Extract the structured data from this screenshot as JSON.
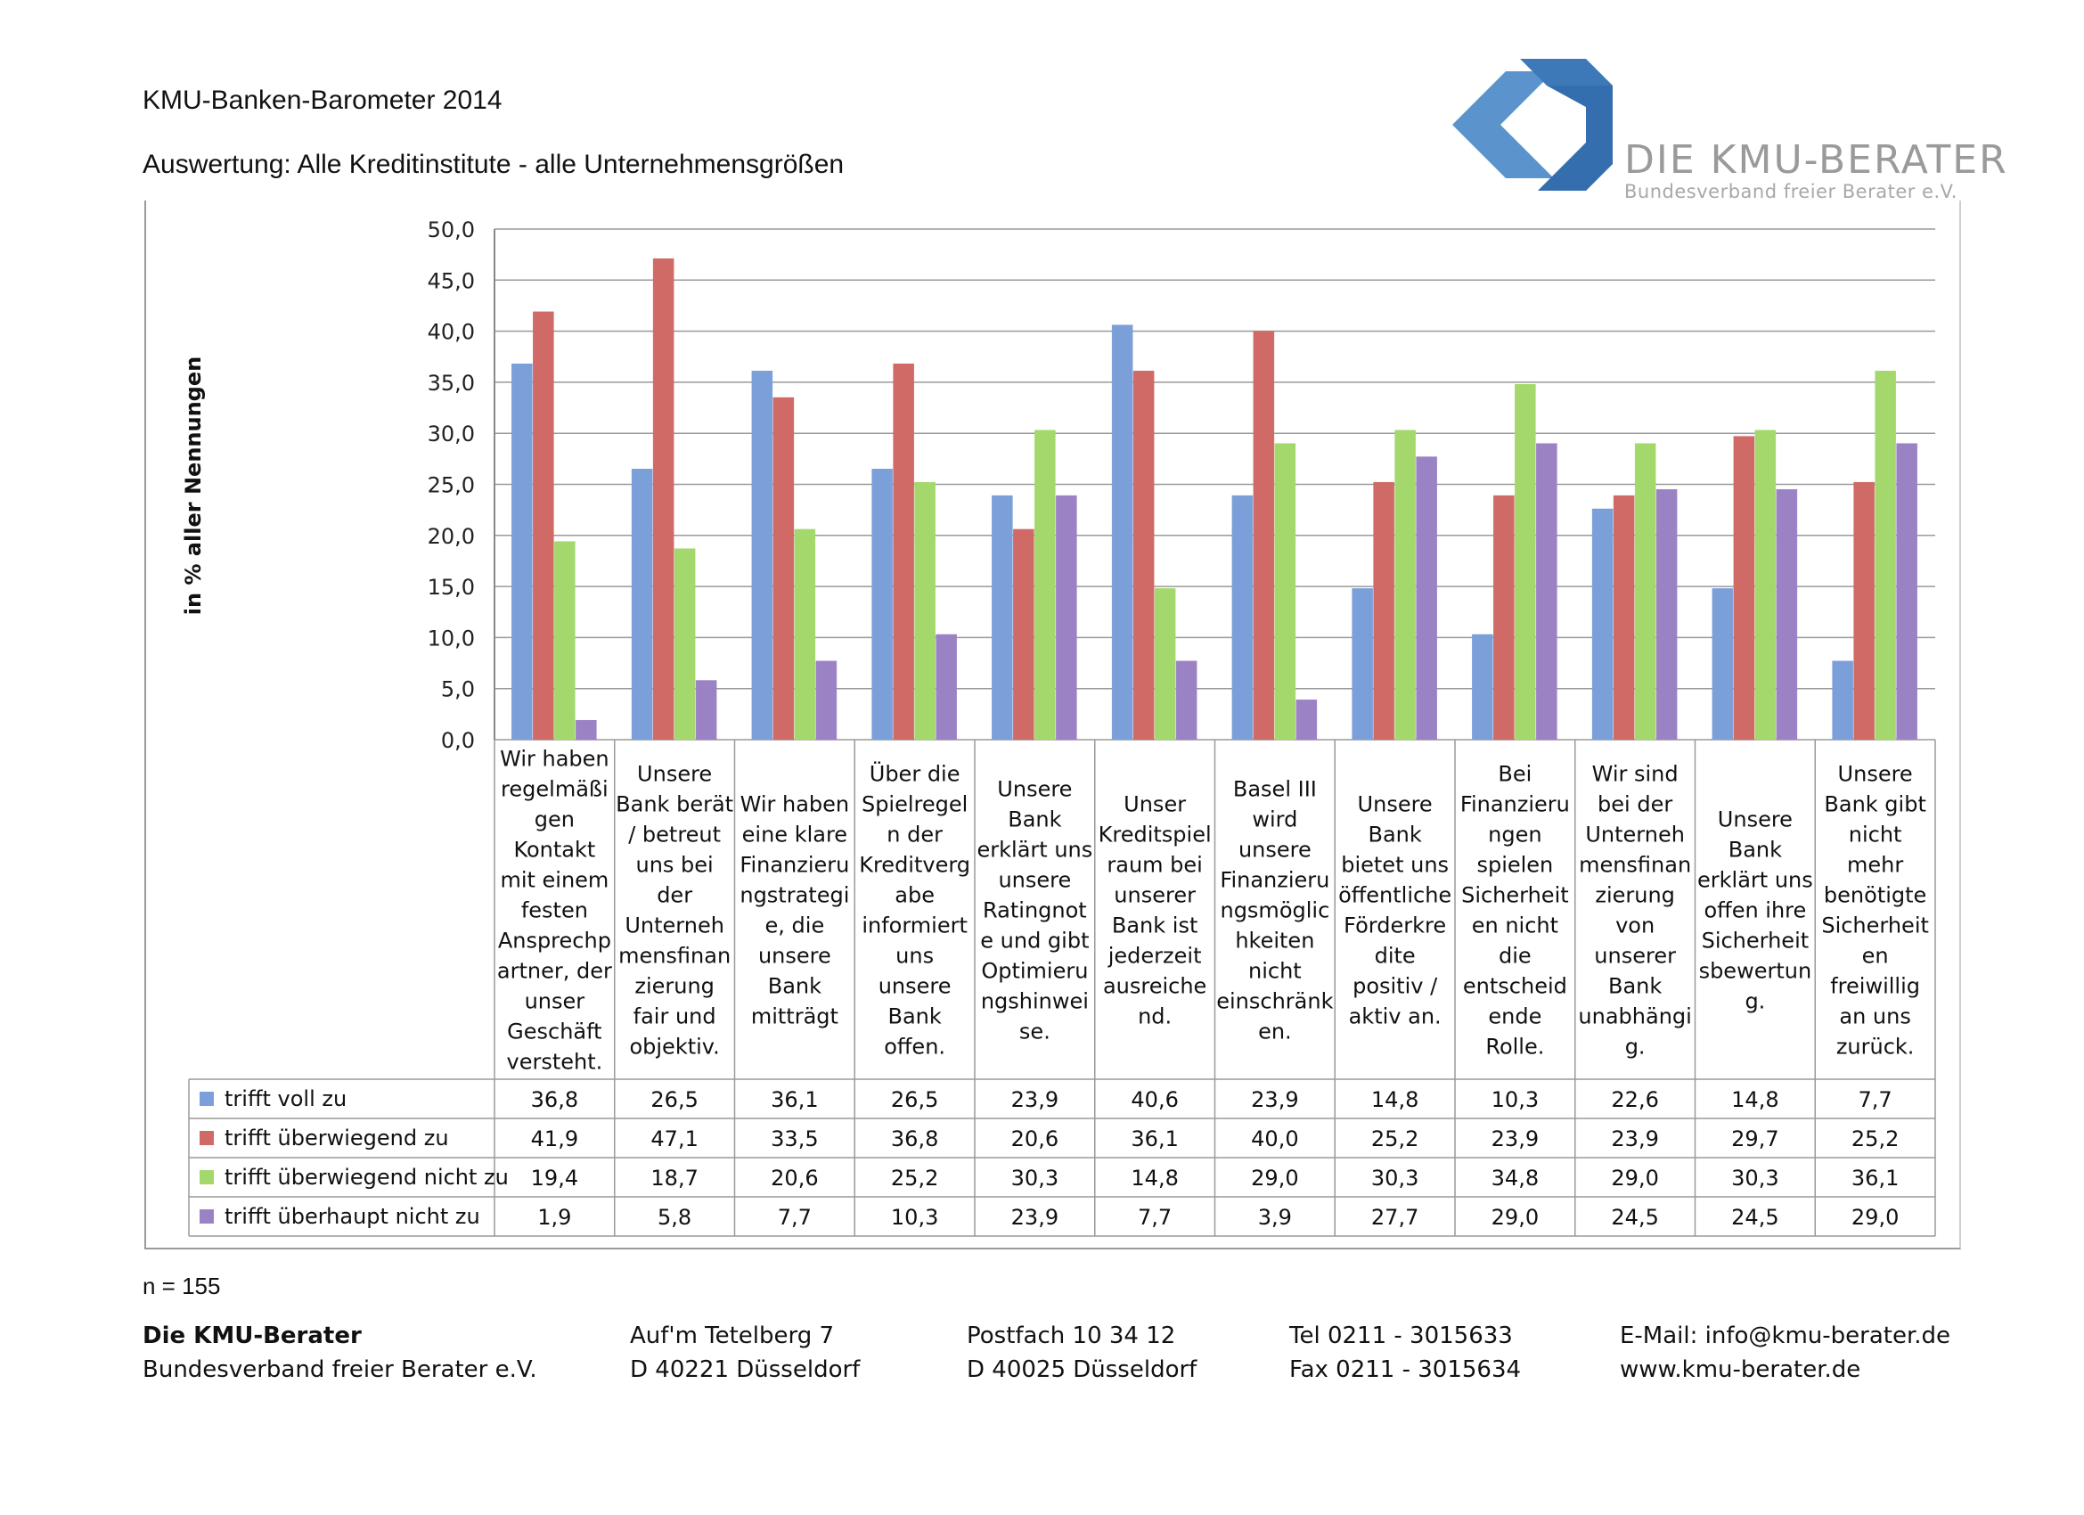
{
  "header": {
    "title": "KMU-Banken-Barometer 2014",
    "subtitle": "Auswertung: Alle Kreditinstitute - alle Unternehmensgrößen"
  },
  "logo": {
    "name": "DIE KMU-BERATER",
    "tagline": "Bundesverband freier Berater e.V.",
    "colors": [
      "#3f7fbf",
      "#6aa3d6",
      "#2f6aa8"
    ]
  },
  "chart_data": {
    "type": "bar",
    "ylabel": "in % aller Nennungen",
    "ylim": [
      0,
      50
    ],
    "ytick_step": 5,
    "grid": true,
    "legend_placement": "table-left",
    "categories": [
      "Wir haben regelmäßigen Kontakt mit einem festen Ansprechpartner, der unser Geschäft versteht.",
      "Unsere Bank berät / betreut uns bei der Unternehmensfinanzierung fair und objektiv.",
      "Wir haben eine klare Finanzierungsstrategie, die unsere Bank mitträgt",
      "Über die Spielregeln der Kreditvergabe informiert uns unsere Bank offen.",
      "Unsere Bank erklärt uns unsere Ratingnote und gibt Optimierungshinweise.",
      "Unser Kreditspielraum bei unserer Bank ist jederzeit ausreichend.",
      "Basel III wird unsere Finanzierungsmöglichkeiten nicht einschränken.",
      "Unsere Bank bietet uns öffentliche Förderkredite positiv / aktiv an.",
      "Bei Finanzierungen spielen Sicherheiten nicht die entscheidende Rolle.",
      "Wir sind bei der Unternehmensfinanzierung von unserer Bank unabhängig.",
      "Unsere Bank erklärt uns offen ihre Sicherheitsbewertung.",
      "Unsere Bank gibt nicht mehr benötigte Sicherheiten freiwillig an uns zurück."
    ],
    "category_lines": [
      [
        "Wir haben",
        "regelmäßi",
        "gen",
        "Kontakt",
        "mit einem",
        "festen",
        "Ansprechp",
        "artner, der",
        "unser",
        "Geschäft",
        "versteht."
      ],
      [
        "Unsere",
        "Bank berät",
        "/ betreut",
        "uns bei",
        "der",
        "Unterneh",
        "mensfinan",
        "zierung",
        "fair und",
        "objektiv."
      ],
      [
        "Wir haben",
        "eine klare",
        "Finanzieru",
        "ngstrategi",
        "e, die",
        "unsere",
        "Bank",
        "mitträgt"
      ],
      [
        "Über die",
        "Spielregel",
        "n der",
        "Kreditverg",
        "abe",
        "informiert",
        "uns",
        "unsere",
        "Bank",
        "offen."
      ],
      [
        "Unsere",
        "Bank",
        "erklärt uns",
        "unsere",
        "Ratingnot",
        "e und gibt",
        "Optimieru",
        "ngshinwei",
        "se."
      ],
      [
        "Unser",
        "Kreditspiel",
        "raum bei",
        "unserer",
        "Bank ist",
        "jederzeit",
        "ausreiche",
        "nd."
      ],
      [
        "Basel III",
        "wird",
        "unsere",
        "Finanzieru",
        "ngsmöglic",
        "hkeiten",
        "nicht",
        "einschränk",
        "en."
      ],
      [
        "Unsere",
        "Bank",
        "bietet uns",
        "öffentliche",
        "Förderkre",
        "dite",
        "positiv /",
        "aktiv an."
      ],
      [
        "Bei",
        "Finanzieru",
        "ngen",
        "spielen",
        "Sicherheit",
        "en nicht",
        "die",
        "entscheid",
        "ende",
        "Rolle."
      ],
      [
        "Wir sind",
        "bei der",
        "Unterneh",
        "mensfinan",
        "zierung",
        "von",
        "unserer",
        "Bank",
        "unabhängi",
        "g."
      ],
      [
        "Unsere",
        "Bank",
        "erklärt uns",
        "offen ihre",
        "Sicherheit",
        "sbewertun",
        "g."
      ],
      [
        "Unsere",
        "Bank gibt",
        "nicht",
        "mehr",
        "benötigte",
        "Sicherheit",
        "en",
        "freiwillig",
        "an uns",
        "zurück."
      ]
    ],
    "series": [
      {
        "name": "trifft voll zu",
        "color": "#7b9fd8",
        "values": [
          36.8,
          26.5,
          36.1,
          26.5,
          23.9,
          40.6,
          23.9,
          14.8,
          10.3,
          22.6,
          14.8,
          7.7
        ]
      },
      {
        "name": "trifft überwiegend zu",
        "color": "#cf6a66",
        "values": [
          41.9,
          47.1,
          33.5,
          36.8,
          20.6,
          36.1,
          40.0,
          25.2,
          23.9,
          23.9,
          29.7,
          25.2
        ]
      },
      {
        "name": "trifft überwiegend nicht zu",
        "color": "#a4d86c",
        "values": [
          19.4,
          18.7,
          20.6,
          25.2,
          30.3,
          14.8,
          29.0,
          30.3,
          34.8,
          29.0,
          30.3,
          36.1
        ]
      },
      {
        "name": "trifft überhaupt nicht zu",
        "color": "#9b82c4",
        "values": [
          1.9,
          5.8,
          7.7,
          10.3,
          23.9,
          7.7,
          3.9,
          27.7,
          29.0,
          24.5,
          24.5,
          29.0
        ]
      }
    ],
    "table_values": [
      [
        "36,8",
        "26,5",
        "36,1",
        "26,5",
        "23,9",
        "40,6",
        "23,9",
        "14,8",
        "10,3",
        "22,6",
        "14,8",
        "7,7"
      ],
      [
        "41,9",
        "47,1",
        "33,5",
        "36,8",
        "20,6",
        "36,1",
        "40,0",
        "25,2",
        "23,9",
        "23,9",
        "29,7",
        "25,2"
      ],
      [
        "19,4",
        "18,7",
        "20,6",
        "25,2",
        "30,3",
        "14,8",
        "29,0",
        "30,3",
        "34,8",
        "29,0",
        "30,3",
        "36,1"
      ],
      [
        "1,9",
        "5,8",
        "7,7",
        "10,3",
        "23,9",
        "7,7",
        "3,9",
        "27,7",
        "29,0",
        "24,5",
        "24,5",
        "29,0"
      ]
    ]
  },
  "sample_size": "n = 155",
  "footer": {
    "org_name": "Die KMU-Berater",
    "org_sub": "Bundesverband freier Berater e.V.",
    "street": "Auf'm Tetelberg 7",
    "city": "D 40221 Düsseldorf",
    "pobox": "Postfach 10 34 12",
    "pobox_city": "D 40025 Düsseldorf",
    "tel": "Tel  0211 - 3015633",
    "fax": "Fax 0211 - 3015634",
    "email": "E-Mail: info@kmu-berater.de",
    "web": "www.kmu-berater.de"
  }
}
